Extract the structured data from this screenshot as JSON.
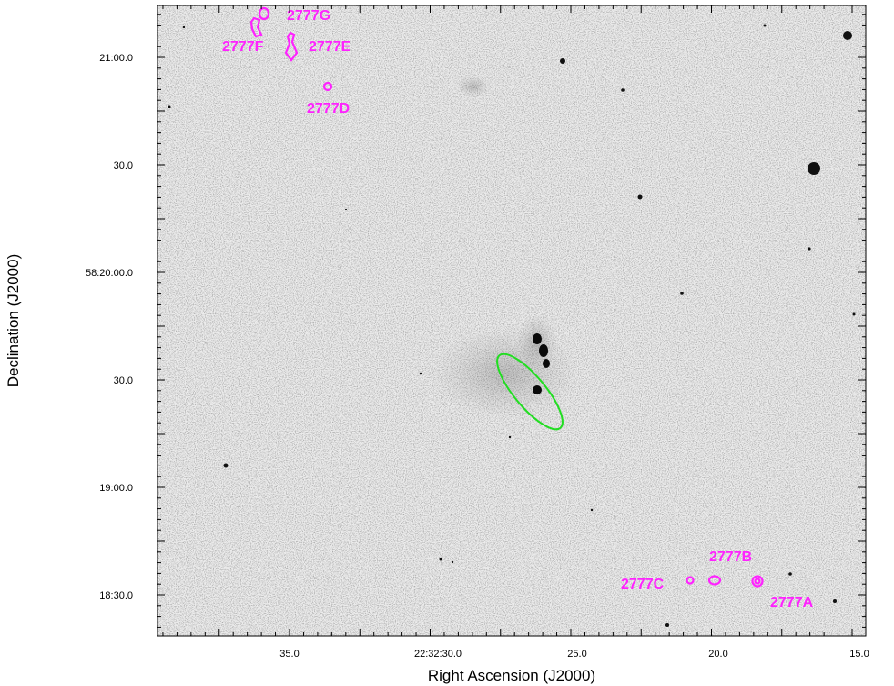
{
  "axes": {
    "xlabel": "Right Ascension (J2000)",
    "ylabel": "Declination (J2000)",
    "x_ticks": [
      "35.0",
      "22:32:30.0",
      "25.0",
      "20.0",
      "15.0"
    ],
    "y_ticks": [
      "21:00.0",
      "30.0",
      "58:20:00.0",
      "30.0",
      "19:00.0",
      "18:30.0"
    ]
  },
  "colors": {
    "source_contour": "#ff22ff",
    "ellipse": "#22dd22",
    "frame": "#000000"
  },
  "sources": [
    {
      "id": "2777A",
      "label": "2777A"
    },
    {
      "id": "2777B",
      "label": "2777B"
    },
    {
      "id": "2777C",
      "label": "2777C"
    },
    {
      "id": "2777D",
      "label": "2777D"
    },
    {
      "id": "2777E",
      "label": "2777E"
    },
    {
      "id": "2777F",
      "label": "2777F"
    },
    {
      "id": "2777G",
      "label": "2777G"
    }
  ]
}
